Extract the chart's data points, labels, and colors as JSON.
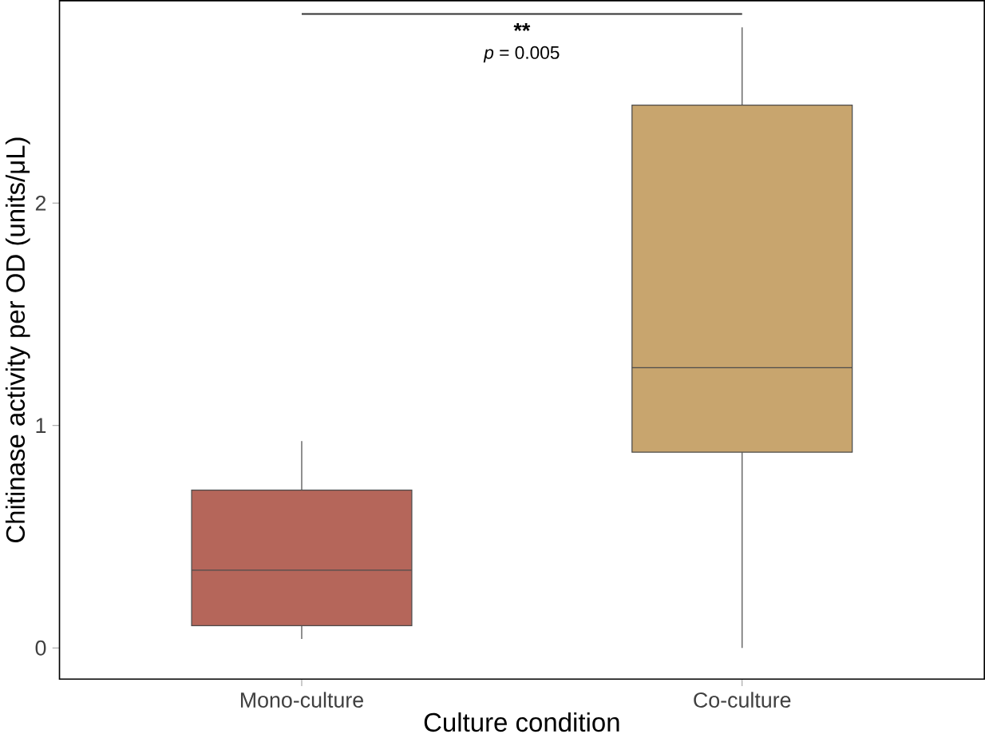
{
  "chart_data": {
    "type": "box",
    "xlabel": "Culture condition",
    "ylabel": "Chitinase activity per OD (units/μL)",
    "categories": [
      "Mono-culture",
      "Co-culture"
    ],
    "colors": [
      "#b5665a",
      "#c8a56e"
    ],
    "boxes": [
      {
        "low": 0.04,
        "q1": 0.1,
        "median": 0.35,
        "q3": 0.71,
        "high": 0.93
      },
      {
        "low": 0.0,
        "q1": 0.88,
        "median": 1.26,
        "q3": 2.44,
        "high": 2.79
      }
    ],
    "ylim": [
      -0.14,
      2.91
    ],
    "yticks": [
      0,
      1,
      2
    ],
    "annotations": [
      "**",
      "*p* = 0.005"
    ]
  }
}
